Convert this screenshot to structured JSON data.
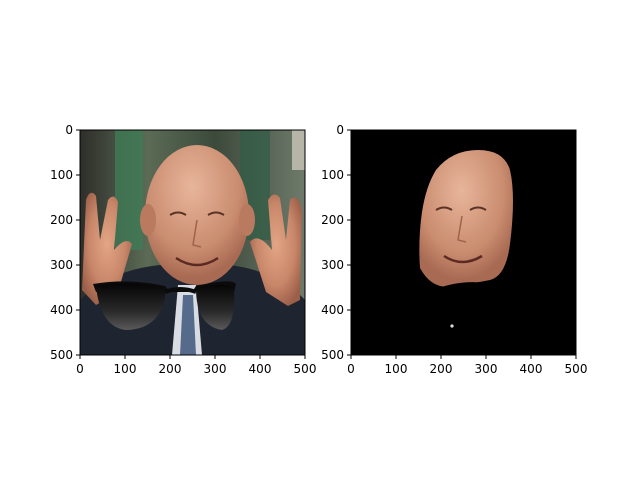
{
  "chart_data": [
    {
      "type": "image",
      "panel": "left",
      "content": "photo of a smiling bald man in a dark suit raising both hands, with a superimposed black sunglasses overlay",
      "x_ticks": [
        0,
        100,
        200,
        300,
        400,
        500
      ],
      "y_ticks": [
        0,
        100,
        200,
        300,
        400,
        500
      ],
      "xlim": [
        0,
        500
      ],
      "ylim": [
        500,
        0
      ],
      "grid": false
    },
    {
      "type": "image",
      "panel": "right",
      "content": "segmented face region of the same man on a black background",
      "x_ticks": [
        0,
        100,
        200,
        300,
        400,
        500
      ],
      "y_ticks": [
        0,
        100,
        200,
        300,
        400,
        500
      ],
      "xlim": [
        0,
        500
      ],
      "ylim": [
        500,
        0
      ],
      "grid": false
    }
  ],
  "colors": {
    "mask_background": "#000000",
    "frame": "#000000"
  }
}
